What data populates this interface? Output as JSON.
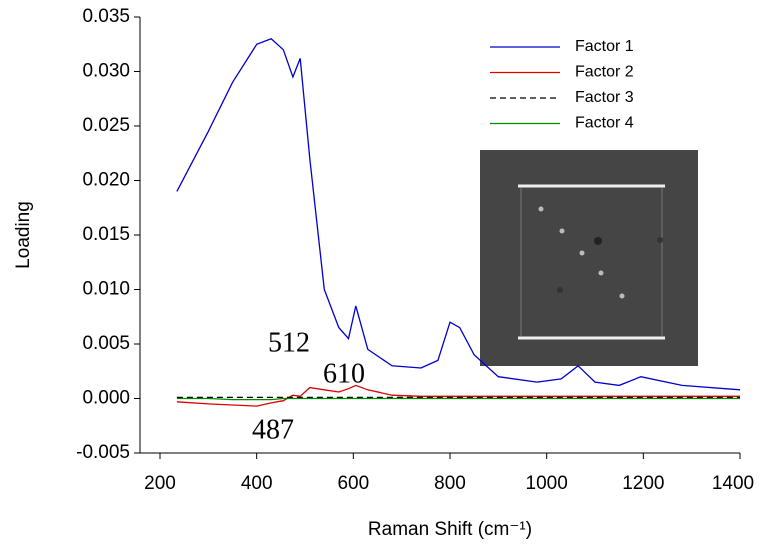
{
  "chart_data": {
    "type": "line",
    "xlabel": "Raman Shift (cm⁻¹)",
    "ylabel": "Loading",
    "x": [
      235,
      300,
      350,
      400,
      430,
      455,
      475,
      490,
      510,
      540,
      570,
      590,
      605,
      630,
      680,
      740,
      775,
      800,
      820,
      850,
      900,
      980,
      1030,
      1065,
      1100,
      1150,
      1195,
      1280,
      1400
    ],
    "series": [
      {
        "name": "Factor 1",
        "color": "#0000cc",
        "dash": false,
        "values": [
          0.019,
          0.0245,
          0.029,
          0.0325,
          0.033,
          0.032,
          0.0295,
          0.0312,
          0.022,
          0.01,
          0.0065,
          0.0055,
          0.0085,
          0.0045,
          0.003,
          0.0028,
          0.0035,
          0.007,
          0.0065,
          0.004,
          0.002,
          0.0015,
          0.0018,
          0.003,
          0.0015,
          0.0012,
          0.002,
          0.0012,
          0.0008
        ]
      },
      {
        "name": "Factor 2",
        "color": "#dd0000",
        "dash": false,
        "values": [
          -0.0003,
          -0.0005,
          -0.0006,
          -0.0007,
          -0.0004,
          -0.0002,
          0.0003,
          0.0002,
          0.001,
          0.0008,
          0.0006,
          0.0009,
          0.0012,
          0.0008,
          0.0003,
          0.0002,
          0.0002,
          0.0002,
          0.0002,
          0.0002,
          0.0002,
          0.0002,
          0.0002,
          0.0002,
          0.0002,
          0.0002,
          0.0002,
          0.0002,
          0.0002
        ]
      },
      {
        "name": "Factor 3",
        "color": "#000000",
        "dash": true,
        "values": [
          0.0001,
          0.0001,
          0.0001,
          0.0001,
          0.0001,
          0.0001,
          0.0001,
          0.0001,
          0.0001,
          0.0001,
          0.0001,
          0.0001,
          0.0001,
          0.0001,
          0.0001,
          0.0001,
          0.0001,
          0.0001,
          0.0001,
          0.0001,
          0.0001,
          0.0001,
          0.0001,
          0.0001,
          0.0001,
          0.0001,
          0.0001,
          0.0001,
          0.0001
        ]
      },
      {
        "name": "Factor 4",
        "color": "#008800",
        "dash": false,
        "values": [
          0,
          0,
          -0.0001,
          -0.0001,
          -0.0001,
          0,
          0,
          0,
          0,
          0,
          0,
          0,
          0,
          0,
          0,
          0,
          0,
          0,
          0,
          0,
          0,
          0,
          0,
          0,
          0,
          0,
          0,
          0,
          0
        ]
      }
    ],
    "annotations": [
      "512",
      "610",
      "487"
    ],
    "xlim": [
      200,
      1400
    ],
    "xticks": [
      200,
      400,
      600,
      800,
      1000,
      1200,
      1400
    ],
    "ylim": [
      -0.005,
      0.035
    ],
    "yticks": [
      -0.005,
      {
        "value": 0,
        "label": "0.000"
      },
      0.005,
      {
        "value": 0.01,
        "label": "0.010"
      },
      0.015,
      {
        "value": 0.02,
        "label": "0.020"
      },
      0.025,
      {
        "value": 0.03,
        "label": "0.030"
      },
      0.035
    ],
    "legend": "upper right"
  }
}
